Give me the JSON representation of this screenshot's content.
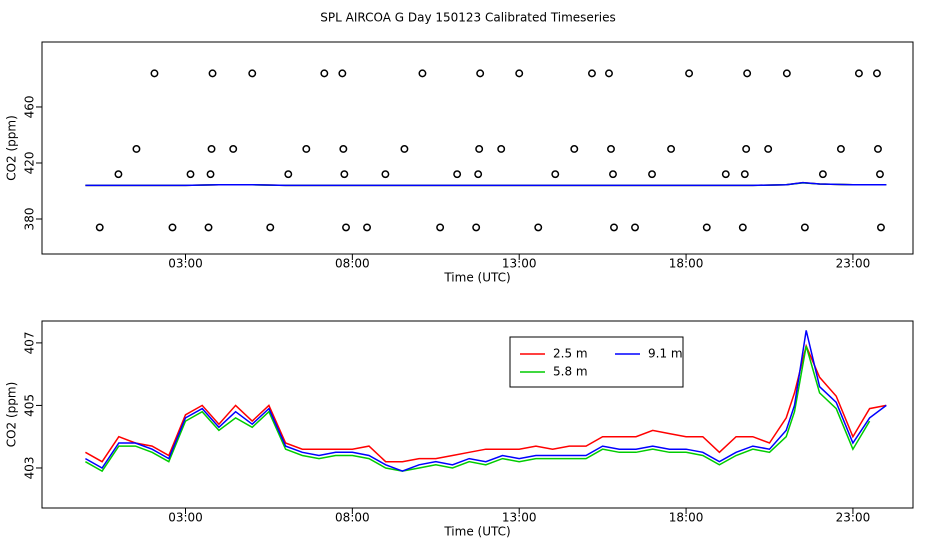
{
  "title": "SPL AIRCOA G  Day 150123  Calibrated Timeseries",
  "chart_data": [
    {
      "type": "line",
      "xlabel": "Time (UTC)",
      "ylabel": "CO2 (ppm)",
      "xlim": [
        -1.3,
        24.8
      ],
      "ylim": [
        355,
        506.4
      ],
      "xticks": [
        {
          "value": 3,
          "label": "03:00"
        },
        {
          "value": 8,
          "label": "08:00"
        },
        {
          "value": 13,
          "label": "13:00"
        },
        {
          "value": 18,
          "label": "18:00"
        },
        {
          "value": 23,
          "label": "23:00"
        }
      ],
      "yticks": [
        380,
        420,
        460
      ],
      "x": [
        0,
        1,
        2,
        3,
        4,
        5,
        6,
        7,
        8,
        9,
        10,
        11,
        12,
        13,
        14,
        15,
        16,
        17,
        18,
        19,
        20,
        21,
        21.5,
        22,
        23,
        24
      ],
      "series": [
        {
          "color": "#ff0000",
          "values": [
            404,
            404,
            404,
            404,
            404.5,
            404.5,
            404,
            404,
            404,
            404,
            404,
            404,
            404,
            404,
            404,
            404,
            404,
            404,
            404,
            404,
            404,
            404.5,
            406,
            405,
            404.5,
            404.5
          ]
        },
        {
          "color": "#00cc00",
          "values": [
            404,
            404,
            404,
            404,
            404.4,
            404.4,
            404,
            404,
            404,
            404,
            404,
            404,
            404,
            404,
            404,
            404,
            404,
            404,
            404,
            404,
            404,
            404.4,
            405.8,
            405,
            404.4,
            404.4
          ]
        },
        {
          "color": "#0000ff",
          "values": [
            404,
            404,
            404,
            404,
            404.5,
            404.5,
            404,
            404,
            404,
            404,
            404,
            404,
            404,
            404,
            404,
            404,
            404,
            404,
            404,
            404,
            404,
            404.5,
            406,
            405,
            404.5,
            404.5
          ]
        }
      ],
      "points": {
        "x": [
          2.07,
          3.81,
          5.0,
          7.16,
          7.7,
          10.1,
          11.83,
          13.0,
          15.18,
          15.69,
          18.09,
          19.83,
          21.02,
          23.18,
          23.72,
          1.53,
          3.78,
          4.43,
          6.62,
          7.73,
          9.56,
          11.8,
          12.46,
          14.65,
          15.75,
          17.55,
          19.8,
          20.46,
          22.64,
          23.75,
          0.99,
          3.15,
          3.75,
          6.08,
          7.76,
          8.99,
          11.14,
          11.77,
          14.08,
          15.81,
          16.98,
          19.19,
          19.76,
          22.1,
          23.81,
          0.43,
          2.61,
          3.69,
          5.54,
          7.81,
          8.44,
          10.63,
          11.71,
          13.57,
          15.84,
          16.47,
          18.62,
          19.7,
          21.56,
          23.84
        ],
        "values": [
          484,
          484,
          484,
          484,
          484,
          484,
          484,
          484,
          484,
          484,
          484,
          484,
          484,
          484,
          484,
          430,
          430,
          430,
          430,
          430,
          430,
          430,
          430,
          430,
          430,
          430,
          430,
          430,
          430,
          430,
          412,
          412,
          412,
          412,
          412,
          412,
          412,
          412,
          412,
          412,
          412,
          412,
          412,
          412,
          412,
          374,
          374,
          374,
          374,
          374,
          374,
          374,
          374,
          374,
          374,
          374,
          374,
          374,
          374,
          374
        ]
      }
    },
    {
      "type": "line",
      "xlabel": "Time (UTC)",
      "ylabel": "CO2 (ppm)",
      "xlim": [
        -1.3,
        24.8
      ],
      "ylim": [
        401.72,
        407.7
      ],
      "xticks": [
        {
          "value": 3,
          "label": "03:00"
        },
        {
          "value": 8,
          "label": "08:00"
        },
        {
          "value": 13,
          "label": "13:00"
        },
        {
          "value": 18,
          "label": "18:00"
        },
        {
          "value": 23,
          "label": "23:00"
        }
      ],
      "yticks": [
        403,
        405,
        407
      ],
      "x": [
        0,
        0.5,
        1,
        1.5,
        2,
        2.5,
        3,
        3.5,
        4,
        4.5,
        5,
        5.5,
        6,
        6.5,
        7,
        7.5,
        8,
        8.5,
        9,
        9.5,
        10,
        10.5,
        11,
        11.5,
        12,
        12.5,
        13,
        13.5,
        14,
        14.5,
        15,
        15.5,
        16,
        16.5,
        17,
        17.5,
        18,
        18.5,
        19,
        19.5,
        20,
        20.5,
        21,
        21.25,
        21.6,
        22,
        22.5,
        23,
        23.5,
        24
      ],
      "series": [
        {
          "name": "2.5 m",
          "color": "#ff0000",
          "values": [
            403.5,
            403.2,
            404.0,
            403.8,
            403.7,
            403.4,
            404.7,
            405.0,
            404.4,
            405.0,
            404.5,
            405.0,
            403.8,
            403.6,
            403.6,
            403.6,
            403.6,
            403.7,
            403.2,
            403.2,
            403.3,
            403.3,
            403.4,
            403.5,
            403.6,
            403.6,
            403.6,
            403.7,
            403.6,
            403.7,
            403.7,
            404.0,
            404.0,
            404.0,
            404.2,
            404.1,
            404.0,
            404.0,
            403.5,
            404.0,
            404.0,
            403.8,
            404.6,
            405.4,
            406.9,
            405.9,
            405.3,
            404.0,
            404.9,
            405.0
          ]
        },
        {
          "name": "5.8 m",
          "color": "#00cc00",
          "values": [
            403.2,
            402.9,
            403.7,
            403.7,
            403.5,
            403.2,
            404.5,
            404.8,
            404.2,
            404.6,
            404.3,
            404.8,
            403.6,
            403.4,
            403.3,
            403.4,
            403.4,
            403.3,
            403.0,
            402.9,
            403.0,
            403.1,
            403.0,
            403.2,
            403.1,
            403.3,
            403.2,
            403.3,
            403.3,
            403.3,
            403.3,
            403.6,
            403.5,
            403.5,
            403.6,
            403.5,
            403.5,
            403.4,
            403.1,
            403.4,
            403.6,
            403.5,
            404.0,
            404.8,
            406.9,
            405.4,
            404.9,
            403.6,
            404.5,
            null
          ]
        },
        {
          "name": "9.1 m",
          "color": "#0000ff",
          "values": [
            403.3,
            403.0,
            403.8,
            403.8,
            403.6,
            403.3,
            404.6,
            404.9,
            404.3,
            404.8,
            404.4,
            404.9,
            403.7,
            403.5,
            403.4,
            403.5,
            403.5,
            403.4,
            403.1,
            402.9,
            403.1,
            403.2,
            403.1,
            403.3,
            403.2,
            403.4,
            403.3,
            403.4,
            403.4,
            403.4,
            403.4,
            403.7,
            403.6,
            403.6,
            403.7,
            403.6,
            403.6,
            403.5,
            403.2,
            403.5,
            403.7,
            403.6,
            404.2,
            405.0,
            407.4,
            405.6,
            405.1,
            403.8,
            404.6,
            405.0
          ]
        }
      ]
    }
  ]
}
